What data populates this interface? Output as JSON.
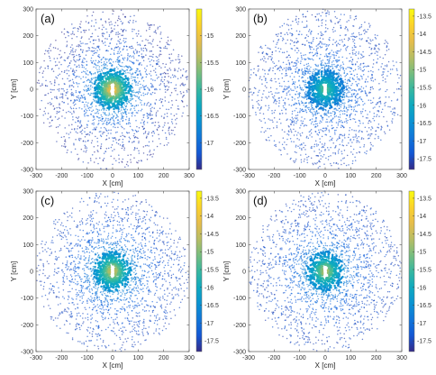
{
  "chart_data": [
    {
      "type": "scatter",
      "panel_label": "(a)",
      "xlabel": "X [cm]",
      "ylabel": "Y [cm]",
      "xlim": [
        -300,
        300
      ],
      "ylim": [
        -300,
        300
      ],
      "xticks": [
        -300,
        -200,
        -100,
        0,
        100,
        200,
        300
      ],
      "yticks": [
        -300,
        -200,
        -100,
        0,
        100,
        200,
        300
      ],
      "colorbar": {
        "min": -17.5,
        "max": -14.5,
        "ticks": [
          -15,
          -15.5,
          -16,
          -16.5,
          -17
        ]
      },
      "center_peak": -14.6,
      "edge_value": -17.4,
      "region_radius": 300,
      "center_hole": [
        0,
        0
      ]
    },
    {
      "type": "scatter",
      "panel_label": "(b)",
      "xlabel": "X [cm]",
      "ylabel": "Y [cm]",
      "xlim": [
        -300,
        300
      ],
      "ylim": [
        -300,
        300
      ],
      "xticks": [
        -300,
        -200,
        -100,
        0,
        100,
        200,
        300
      ],
      "yticks": [
        -300,
        -200,
        -100,
        0,
        100,
        200,
        300
      ],
      "colorbar": {
        "min": -17.8,
        "max": -13.3,
        "ticks": [
          -13.5,
          -14,
          -14.5,
          -15,
          -15.5,
          -16,
          -16.5,
          -17,
          -17.5
        ]
      },
      "center_peak": -15.0,
      "edge_value": -17.5,
      "region_radius": 300,
      "center_hole": [
        0,
        0
      ]
    },
    {
      "type": "scatter",
      "panel_label": "(c)",
      "xlabel": "X [cm]",
      "ylabel": "Y [cm]",
      "xlim": [
        -300,
        300
      ],
      "ylim": [
        -300,
        300
      ],
      "xticks": [
        -300,
        -200,
        -100,
        0,
        100,
        200,
        300
      ],
      "yticks": [
        -300,
        -200,
        -100,
        0,
        100,
        200,
        300
      ],
      "colorbar": {
        "min": -17.8,
        "max": -13.3,
        "ticks": [
          -13.5,
          -14,
          -14.5,
          -15,
          -15.5,
          -16,
          -16.5,
          -17,
          -17.5
        ]
      },
      "center_peak": -14.0,
      "edge_value": -17.5,
      "region_radius": 300,
      "center_hole": [
        0,
        0
      ]
    },
    {
      "type": "scatter",
      "panel_label": "(d)",
      "xlabel": "X [cm]",
      "ylabel": "Y [cm]",
      "xlim": [
        -300,
        300
      ],
      "ylim": [
        -300,
        300
      ],
      "xticks": [
        -300,
        -200,
        -100,
        0,
        100,
        200,
        300
      ],
      "yticks": [
        -300,
        -200,
        -100,
        0,
        100,
        200,
        300
      ],
      "colorbar": {
        "min": -17.8,
        "max": -13.3,
        "ticks": [
          -13.5,
          -14,
          -14.5,
          -15,
          -15.5,
          -16,
          -16.5,
          -17,
          -17.5
        ]
      },
      "center_peak": -14.3,
      "edge_value": -17.5,
      "region_radius": 300,
      "center_hole": [
        0,
        0
      ]
    }
  ]
}
